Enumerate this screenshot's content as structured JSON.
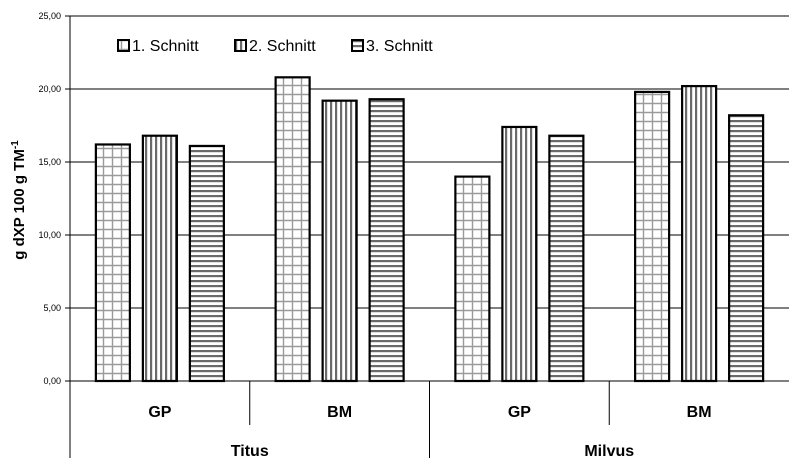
{
  "chart_data": {
    "type": "bar",
    "title": "",
    "ylabel": "g dXP 100 g TM",
    "ylabel_sup": "-1",
    "ylim": [
      0,
      25
    ],
    "yticks": [
      0,
      5,
      10,
      15,
      20,
      25
    ],
    "ytick_labels": [
      "0,00",
      "5,00",
      "10,00",
      "15,00",
      "20,00",
      "25,00"
    ],
    "grid": true,
    "legend_position": "top-left",
    "categories": [
      "GP",
      "BM",
      "GP",
      "BM"
    ],
    "groups": [
      {
        "label": "Titus",
        "span": 2
      },
      {
        "label": "Milvus",
        "span": 2
      }
    ],
    "series": [
      {
        "name": "1. Schnitt",
        "pattern": "grid",
        "values": [
          16.2,
          20.8,
          14.0,
          19.8
        ]
      },
      {
        "name": "2. Schnitt",
        "pattern": "vertical",
        "values": [
          16.8,
          19.2,
          17.4,
          20.2
        ]
      },
      {
        "name": "3. Schnitt",
        "pattern": "horizontal",
        "values": [
          16.1,
          19.3,
          16.8,
          18.2
        ]
      }
    ]
  }
}
